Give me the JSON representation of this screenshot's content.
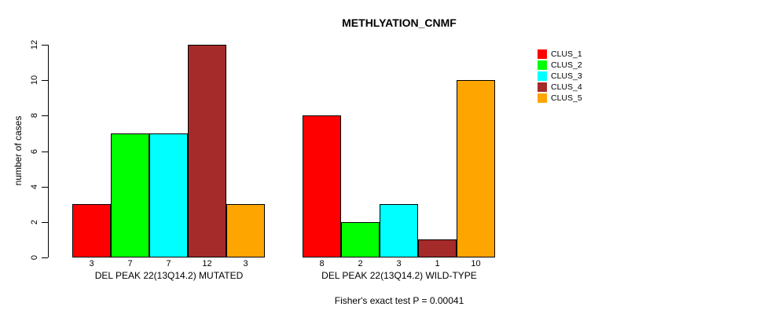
{
  "chart_data": {
    "type": "bar",
    "title": "METHLYATION_CNMF",
    "ylabel": "number of cases",
    "xlabel": "",
    "ylim": [
      0,
      12
    ],
    "yticks": [
      0,
      2,
      4,
      6,
      8,
      10,
      12
    ],
    "grid": false,
    "legend_position": "right",
    "categories": [
      "DEL PEAK 22(13Q14.2) MUTATED",
      "DEL PEAK 22(13Q14.2) WILD-TYPE"
    ],
    "series": [
      {
        "name": "CLUS_1",
        "color": "#FF0000",
        "values": [
          3,
          8
        ]
      },
      {
        "name": "CLUS_2",
        "color": "#00FF00",
        "values": [
          7,
          2
        ]
      },
      {
        "name": "CLUS_3",
        "color": "#00FFFF",
        "values": [
          7,
          3
        ]
      },
      {
        "name": "CLUS_4",
        "color": "#A52A2A",
        "values": [
          12,
          1
        ]
      },
      {
        "name": "CLUS_5",
        "color": "#FFA500",
        "values": [
          3,
          10
        ]
      }
    ],
    "bar_value_labels": [
      [
        3,
        7,
        7,
        12,
        3
      ],
      [
        8,
        2,
        3,
        1,
        10
      ]
    ],
    "annotation": "Fisher's exact test P = 0.00041",
    "axis_color": "#000000",
    "background_color": "#FFFFFF"
  }
}
